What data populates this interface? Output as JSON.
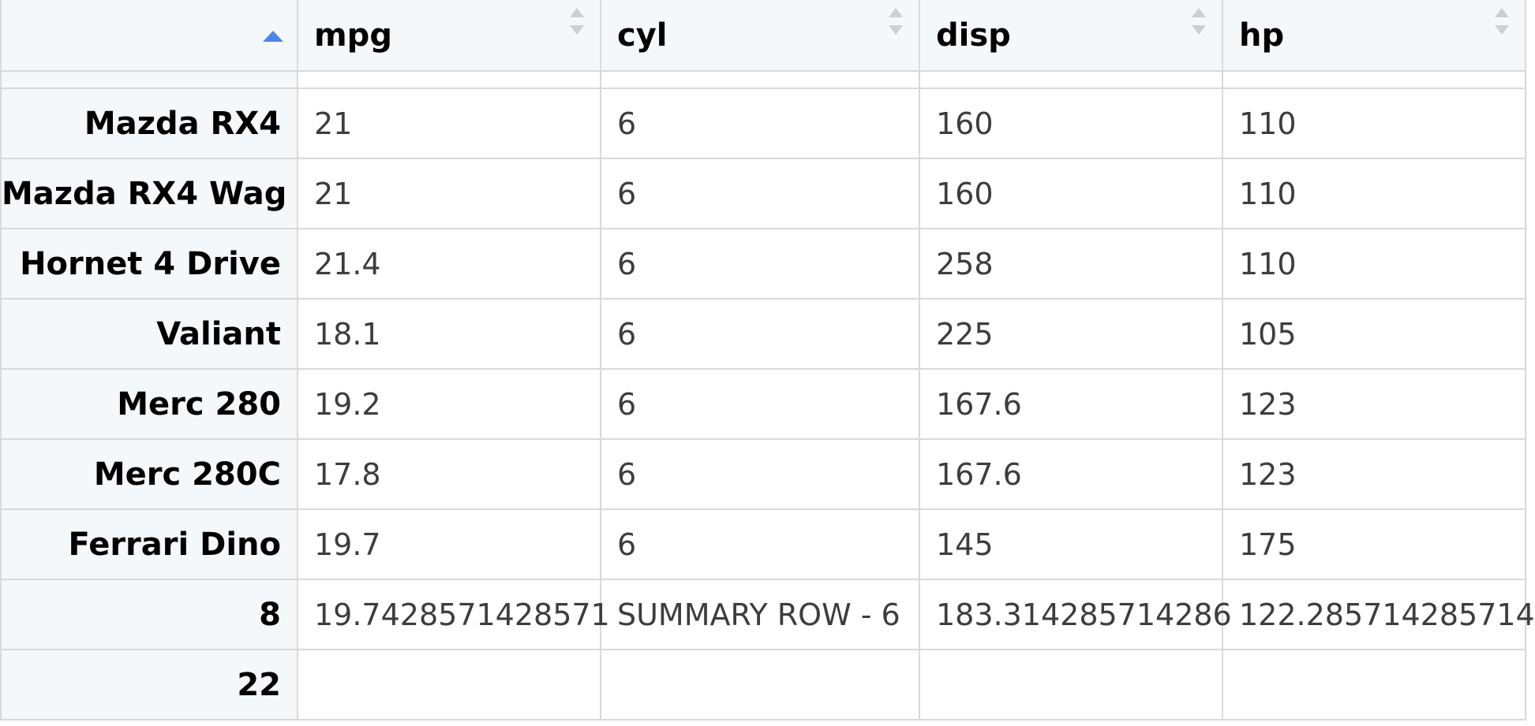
{
  "table": {
    "columns": [
      "mpg",
      "cyl",
      "disp",
      "hp"
    ],
    "sorted_column": "rownames",
    "sort_direction": "ascending",
    "rows": [
      {
        "name": "Mazda RX4",
        "cells": [
          "21",
          "6",
          "160",
          "110"
        ]
      },
      {
        "name": "Mazda RX4 Wag",
        "cells": [
          "21",
          "6",
          "160",
          "110"
        ]
      },
      {
        "name": "Hornet 4 Drive",
        "cells": [
          "21.4",
          "6",
          "258",
          "110"
        ]
      },
      {
        "name": "Valiant",
        "cells": [
          "18.1",
          "6",
          "225",
          "105"
        ]
      },
      {
        "name": "Merc 280",
        "cells": [
          "19.2",
          "6",
          "167.6",
          "123"
        ]
      },
      {
        "name": "Merc 280C",
        "cells": [
          "17.8",
          "6",
          "167.6",
          "123"
        ]
      },
      {
        "name": "Ferrari Dino",
        "cells": [
          "19.7",
          "6",
          "145",
          "175"
        ]
      },
      {
        "name": "8",
        "cells": [
          "19.7428571428571",
          "SUMMARY ROW - 6",
          "183.314285714286",
          "122.285714285714"
        ]
      },
      {
        "name": "22",
        "cells": [
          "",
          "",
          "",
          ""
        ]
      }
    ]
  },
  "colors": {
    "header_bg": "#f4f8fb",
    "border": "#d9d9d9",
    "sort_active": "#4a86e8",
    "sort_inactive": "#cfcfcf"
  },
  "icons": {
    "sort_asc": "sort-ascending-icon",
    "sort_both": "sort-both-icon"
  }
}
